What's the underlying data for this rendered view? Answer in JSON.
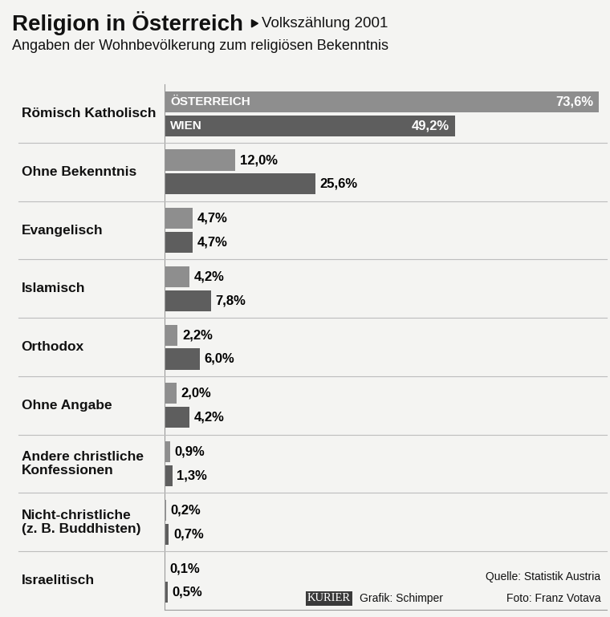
{
  "chart_data": {
    "type": "bar",
    "orientation": "horizontal",
    "title": "Religion in Österreich",
    "subtitle": "Volkszählung 2001",
    "description": "Angaben der Wohnbevölkerung zum religiösen Bekenntnis",
    "categories": [
      "Römisch Katholisch",
      "Ohne Bekenntnis",
      "Evangelisch",
      "Islamisch",
      "Orthodox",
      "Ohne Angabe",
      "Andere christliche Konfessionen",
      "Nicht-christliche (z. B. Buddhisten)",
      "Israelitisch"
    ],
    "series": [
      {
        "name": "ÖSTERREICH",
        "color": "#8e8e8e",
        "values": [
          73.6,
          12.0,
          4.7,
          4.2,
          2.2,
          2.0,
          0.9,
          0.2,
          0.1
        ],
        "value_labels": [
          "73,6%",
          "12,0%",
          "4,7%",
          "4,2%",
          "2,2%",
          "2,0%",
          "0,9%",
          "0,2%",
          "0,1%"
        ]
      },
      {
        "name": "WIEN",
        "color": "#5e5e5e",
        "values": [
          49.2,
          25.6,
          4.7,
          7.8,
          6.0,
          4.2,
          1.3,
          0.7,
          0.5
        ],
        "value_labels": [
          "49,2%",
          "25,6%",
          "4,7%",
          "7,8%",
          "6,0%",
          "4,2%",
          "1,3%",
          "0,7%",
          "0,5%"
        ]
      }
    ],
    "xlim": [
      0,
      75
    ],
    "data_labels": true,
    "grid": false,
    "tick_labels": false,
    "source": "Quelle: Statistik Austria",
    "publisher": "KURIER",
    "graphic_credit": "Grafik: Schimper",
    "photo_credit": "Foto: Franz Votava"
  }
}
